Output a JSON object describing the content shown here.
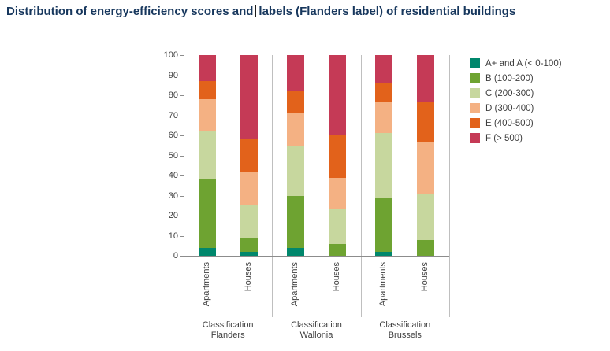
{
  "title": {
    "part1": "Distribution of energy-efficiency scores and",
    "part2": "labels (Flanders label) of residential buildings"
  },
  "chart_data": {
    "type": "bar",
    "stacked": true,
    "title": "Distribution of energy-efficiency scores and labels (Flanders label) of residential buildings",
    "ylim": [
      0,
      100
    ],
    "yticks": [
      0,
      10,
      20,
      30,
      40,
      50,
      60,
      70,
      80,
      90,
      100
    ],
    "grid": false,
    "legend_position": "right",
    "group_labels": [
      {
        "line1": "Classification",
        "line2": "Flanders"
      },
      {
        "line1": "Classification",
        "line2": "Wallonia"
      },
      {
        "line1": "Classification",
        "line2": "Brussels"
      }
    ],
    "bar_labels": [
      "Apartments",
      "Houses",
      "Apartments",
      "Houses",
      "Apartments",
      "Houses"
    ],
    "series": [
      {
        "name": "A+ and A (< 0-100)",
        "color": "#00876c",
        "values": [
          4,
          2,
          4,
          0,
          2,
          0
        ]
      },
      {
        "name": "B (100-200)",
        "color": "#6ea331",
        "values": [
          34,
          7,
          26,
          6,
          27,
          8
        ]
      },
      {
        "name": "C (200-300)",
        "color": "#c7d79e",
        "values": [
          24,
          16,
          25,
          17,
          32,
          23
        ]
      },
      {
        "name": "D (300-400)",
        "color": "#f4b183",
        "values": [
          16,
          17,
          16,
          16,
          16,
          26
        ]
      },
      {
        "name": "E (400-500)",
        "color": "#e2621b",
        "values": [
          9,
          16,
          11,
          21,
          9,
          20
        ]
      },
      {
        "name": "F (> 500)",
        "color": "#c53a56",
        "values": [
          13,
          42,
          18,
          40,
          14,
          23
        ]
      }
    ]
  }
}
